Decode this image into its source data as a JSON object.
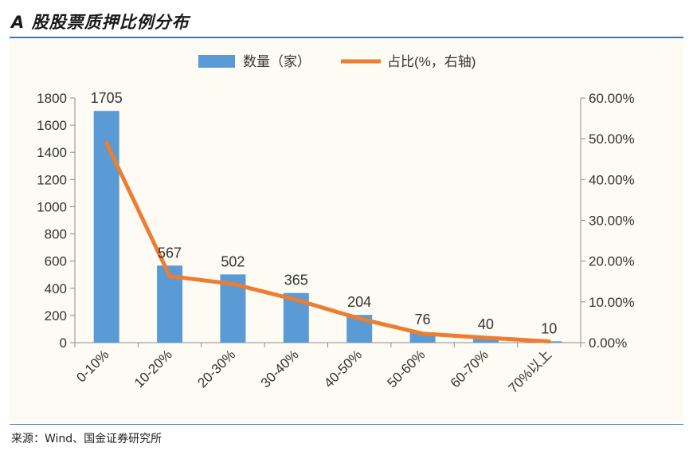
{
  "title": "A 股股票质押比例分布",
  "source": "来源：Wind、国金证券研究所",
  "chart_data": {
    "type": "bar",
    "categories": [
      "0-10%",
      "10-20%",
      "20-30%",
      "30-40%",
      "40-50%",
      "50-60%",
      "60-70%",
      "70%以上"
    ],
    "series": [
      {
        "name": "数量（家）",
        "type": "bar",
        "axis": "left",
        "color": "#5b9bd5",
        "values": [
          1705,
          567,
          502,
          365,
          204,
          76,
          40,
          10
        ]
      },
      {
        "name": "占比(%，右轴)",
        "type": "line",
        "axis": "right",
        "color": "#ed7d31",
        "values": [
          49.0,
          16.3,
          14.4,
          10.5,
          5.9,
          2.2,
          1.2,
          0.3
        ]
      }
    ],
    "yleft": {
      "min": 0,
      "max": 1800,
      "ticks": [
        0,
        200,
        400,
        600,
        800,
        1000,
        1200,
        1400,
        1600,
        1800
      ],
      "tick_labels": [
        "0",
        "200",
        "400",
        "600",
        "800",
        "1000",
        "1200",
        "1400",
        "1600",
        "1800"
      ]
    },
    "yright": {
      "min": 0,
      "max": 60,
      "ticks": [
        0,
        10,
        20,
        30,
        40,
        50,
        60
      ],
      "tick_labels": [
        "0.00%",
        "10.00%",
        "20.00%",
        "30.00%",
        "40.00%",
        "50.00%",
        "60.00%"
      ]
    },
    "data_labels": [
      "1705",
      "567",
      "502",
      "365",
      "204",
      "76",
      "40",
      "10"
    ],
    "legend_position": "top-center",
    "grid": false,
    "colors": {
      "bar": "#5b9bd5",
      "line": "#ed7d31",
      "axis": "#8c8c8c",
      "text": "#333333"
    }
  }
}
